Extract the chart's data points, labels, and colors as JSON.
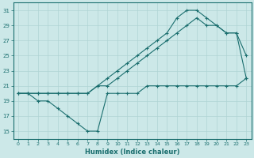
{
  "xlabel": "Humidex (Indice chaleur)",
  "bg_color": "#cce8e8",
  "line_color": "#1a6e6e",
  "grid_color": "#b0d4d4",
  "xlim": [
    -0.5,
    23.5
  ],
  "ylim": [
    14,
    32
  ],
  "yticks": [
    15,
    17,
    19,
    21,
    23,
    25,
    27,
    29,
    31
  ],
  "xticks": [
    0,
    1,
    2,
    3,
    4,
    5,
    6,
    7,
    8,
    9,
    10,
    11,
    12,
    13,
    14,
    15,
    16,
    17,
    18,
    19,
    20,
    21,
    22,
    23
  ],
  "line1_x": [
    0,
    1,
    2,
    3,
    4,
    5,
    6,
    7,
    8,
    9,
    10,
    11,
    12,
    13,
    14,
    15,
    16,
    17,
    18,
    19,
    20,
    21,
    22,
    23
  ],
  "line1_y": [
    20,
    20,
    19,
    19,
    18,
    17,
    16,
    15,
    15,
    20,
    20,
    20,
    20,
    21,
    21,
    21,
    21,
    21,
    21,
    21,
    21,
    21,
    21,
    22
  ],
  "line2_x": [
    0,
    1,
    2,
    3,
    4,
    5,
    6,
    7,
    8,
    9,
    10,
    11,
    12,
    13,
    14,
    15,
    16,
    17,
    18,
    19,
    20,
    21,
    22,
    23
  ],
  "line2_y": [
    20,
    20,
    20,
    20,
    20,
    20,
    20,
    20,
    21,
    21,
    22,
    23,
    24,
    25,
    26,
    27,
    28,
    29,
    30,
    29,
    29,
    28,
    28,
    25
  ],
  "line3_x": [
    0,
    1,
    2,
    3,
    4,
    5,
    6,
    7,
    8,
    9,
    10,
    11,
    12,
    13,
    14,
    15,
    16,
    17,
    18,
    19,
    20,
    21,
    22,
    23
  ],
  "line3_y": [
    20,
    20,
    20,
    20,
    20,
    20,
    20,
    20,
    21,
    22,
    23,
    24,
    25,
    26,
    27,
    28,
    30,
    31,
    31,
    30,
    29,
    28,
    28,
    22
  ]
}
